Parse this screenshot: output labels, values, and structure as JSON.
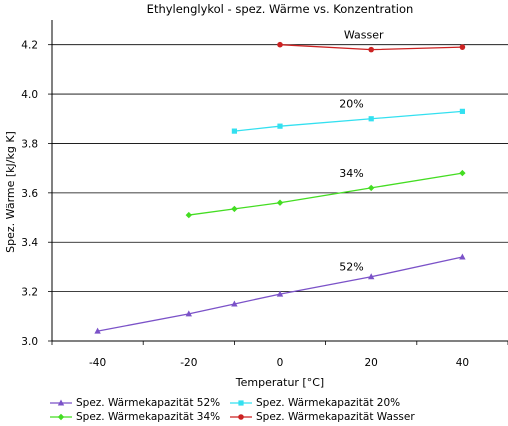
{
  "chart_data": {
    "type": "line",
    "title": "Ethylenglykol - spez. Wärme vs. Konzentration",
    "xlabel": "Temperatur [°C]",
    "ylabel": "Spez. Wärme [kJ/kg K]",
    "xlim": [
      -50,
      50
    ],
    "ylim": [
      3.0,
      4.3
    ],
    "xticks": [
      -40,
      -20,
      0,
      20,
      40
    ],
    "yticks": [
      3.0,
      3.2,
      3.4,
      3.6,
      3.8,
      4.0,
      4.2
    ],
    "ytick_labels": [
      "3.0",
      "3.2",
      "3.4",
      "3.6",
      "3.8",
      "4.0",
      "4.2"
    ],
    "grid": "horizontal",
    "legend_position": "bottom",
    "series": [
      {
        "name": "Spez. Wärmekapazität 52%",
        "color": "#7b52c8",
        "marker": "triangle",
        "x": [
          -40,
          -20,
          -10,
          0,
          20,
          40
        ],
        "y": [
          3.04,
          3.11,
          3.15,
          3.19,
          3.26,
          3.34
        ]
      },
      {
        "name": "Spez. Wärmekapazität 34%",
        "color": "#44dd22",
        "marker": "diamond",
        "x": [
          -20,
          -10,
          0,
          20,
          40
        ],
        "y": [
          3.51,
          3.535,
          3.56,
          3.62,
          3.68
        ]
      },
      {
        "name": "Spez. Wärmekapazität 20%",
        "color": "#33e0f0",
        "marker": "square",
        "x": [
          -10,
          0,
          20,
          40
        ],
        "y": [
          3.85,
          3.87,
          3.9,
          3.93
        ]
      },
      {
        "name": "Spez. Wärmekapazität Wasser",
        "color": "#cc2222",
        "marker": "circle",
        "x": [
          0,
          20,
          40
        ],
        "y": [
          4.2,
          4.18,
          4.19
        ]
      }
    ],
    "annotations": [
      {
        "text": "Wasser",
        "x": 14,
        "y": 4.225
      },
      {
        "text": "20%",
        "x": 13,
        "y": 3.945
      },
      {
        "text": "34%",
        "x": 13,
        "y": 3.665
      },
      {
        "text": "52%",
        "x": 13,
        "y": 3.285
      }
    ]
  }
}
